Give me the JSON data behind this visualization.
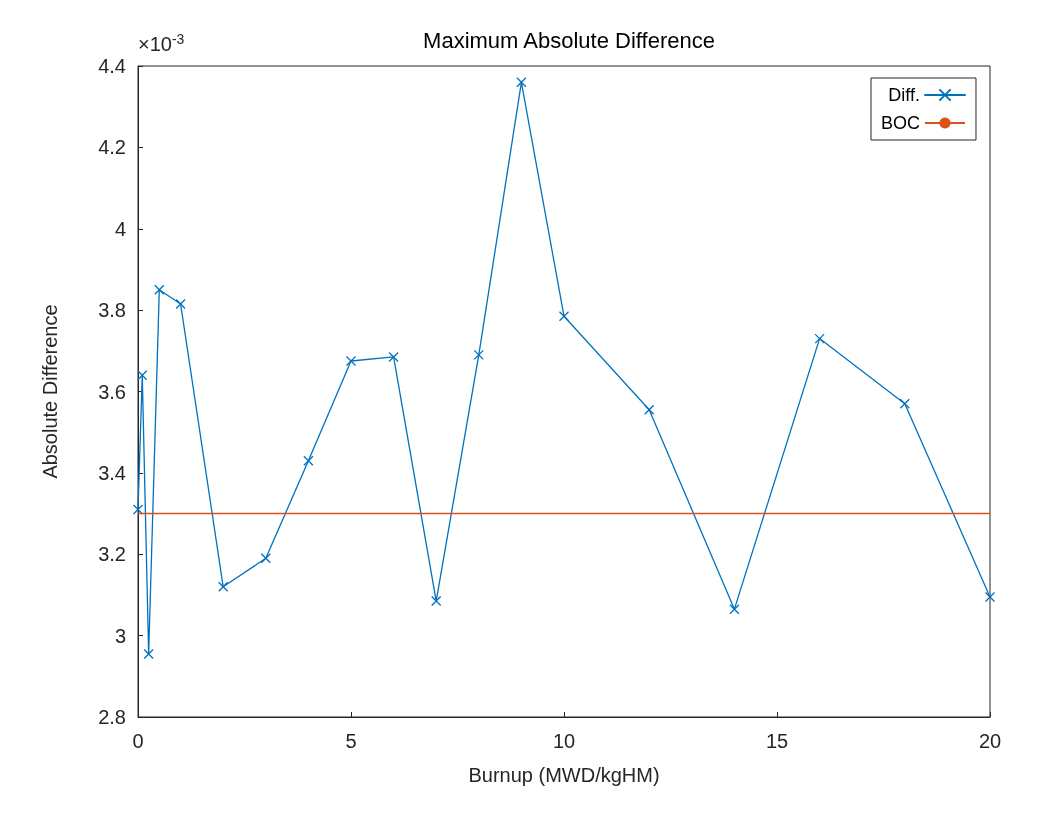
{
  "chart_data": {
    "type": "line",
    "title": "Maximum Absolute Difference",
    "xlabel": "Burnup (MWD/kgHM)",
    "ylabel": "Absolute Difference",
    "annotations": [
      "×10$^{-3}$"
    ],
    "x": [
      0,
      0.1,
      0.25,
      0.5,
      1,
      2,
      3,
      4,
      5,
      6,
      7,
      8,
      9,
      10,
      12,
      14,
      16,
      18,
      20
    ],
    "series": [
      {
        "name": "Diff.",
        "color": "#0072bd",
        "values": [
          3.31,
          3.64,
          2.955,
          3.85,
          3.815,
          3.12,
          3.19,
          3.43,
          3.675,
          3.685,
          3.085,
          3.69,
          4.36,
          3.785,
          3.555,
          3.065,
          3.73,
          3.57,
          3.095
        ]
      }
    ],
    "ref_lines": [
      {
        "axis": "y",
        "value": 3.3,
        "label": "BOC",
        "color": "#d95319"
      }
    ],
    "xlim": [
      0,
      20
    ],
    "xticks": [
      0,
      5,
      10,
      15,
      20
    ],
    "ylim": [
      2.8,
      4.4
    ],
    "yticks": [
      2.8,
      3,
      3.2,
      3.4,
      3.6,
      3.8,
      4,
      4.2,
      4.4
    ],
    "grid": false,
    "legend": "top right",
    "marker": "cross",
    "line_style": "solid"
  }
}
